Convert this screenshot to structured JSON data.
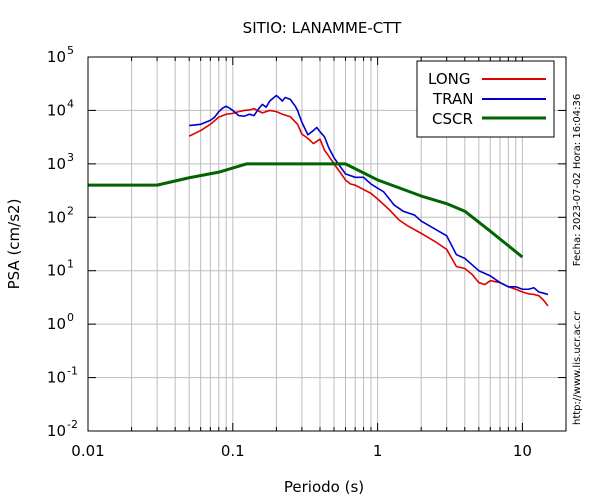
{
  "chart_data": {
    "type": "line",
    "title": "SITIO: LANAMME-CTT",
    "xlabel": "Periodo (s)",
    "ylabel": "PSA (cm/s2)",
    "x_scale": "log",
    "y_scale": "log",
    "xlim": [
      0.01,
      20
    ],
    "ylim": [
      0.01,
      100000
    ],
    "grid": true,
    "legend_position": "top-right",
    "x_ticks": [
      {
        "value": 0.01,
        "label": "0.01"
      },
      {
        "value": 0.1,
        "label": "0.1"
      },
      {
        "value": 1,
        "label": "1"
      },
      {
        "value": 10,
        "label": "10"
      }
    ],
    "y_ticks": [
      {
        "value": 0.01,
        "base": "10",
        "exp": "-2"
      },
      {
        "value": 0.1,
        "base": "10",
        "exp": "-1"
      },
      {
        "value": 1,
        "base": "10",
        "exp": "0"
      },
      {
        "value": 10,
        "base": "10",
        "exp": "1"
      },
      {
        "value": 100,
        "base": "10",
        "exp": "2"
      },
      {
        "value": 1000,
        "base": "10",
        "exp": "3"
      },
      {
        "value": 10000,
        "base": "10",
        "exp": "4"
      },
      {
        "value": 100000,
        "base": "10",
        "exp": "5"
      }
    ],
    "side_text": {
      "date": "Fecha: 2023-07-02  Hora: 16:04:36",
      "url": "http://www.lis.ucr.ac.cr"
    },
    "series": [
      {
        "name": "LONG",
        "color": "#e00000",
        "points": [
          [
            0.05,
            3300
          ],
          [
            0.06,
            4200
          ],
          [
            0.07,
            5500
          ],
          [
            0.08,
            7500
          ],
          [
            0.09,
            8500
          ],
          [
            0.1,
            8800
          ],
          [
            0.11,
            9500
          ],
          [
            0.12,
            10000
          ],
          [
            0.13,
            10200
          ],
          [
            0.14,
            10800
          ],
          [
            0.15,
            9800
          ],
          [
            0.16,
            9000
          ],
          [
            0.18,
            10000
          ],
          [
            0.2,
            9500
          ],
          [
            0.22,
            8500
          ],
          [
            0.25,
            7600
          ],
          [
            0.28,
            5500
          ],
          [
            0.3,
            3600
          ],
          [
            0.33,
            3000
          ],
          [
            0.36,
            2400
          ],
          [
            0.4,
            2900
          ],
          [
            0.43,
            1800
          ],
          [
            0.46,
            1400
          ],
          [
            0.5,
            1000
          ],
          [
            0.55,
            700
          ],
          [
            0.6,
            500
          ],
          [
            0.65,
            420
          ],
          [
            0.7,
            400
          ],
          [
            0.8,
            330
          ],
          [
            0.9,
            280
          ],
          [
            1.0,
            220
          ],
          [
            1.2,
            140
          ],
          [
            1.4,
            90
          ],
          [
            1.6,
            70
          ],
          [
            2.0,
            50
          ],
          [
            2.5,
            35
          ],
          [
            3.0,
            25
          ],
          [
            3.5,
            12
          ],
          [
            4.0,
            11
          ],
          [
            4.5,
            8.5
          ],
          [
            5.0,
            6
          ],
          [
            5.5,
            5.5
          ],
          [
            6.0,
            6.5
          ],
          [
            7.0,
            6
          ],
          [
            8.0,
            5
          ],
          [
            9.0,
            4.5
          ],
          [
            10.0,
            4
          ],
          [
            11.0,
            3.7
          ],
          [
            12.0,
            3.6
          ],
          [
            13.0,
            3.4
          ],
          [
            14.0,
            2.8
          ],
          [
            15.0,
            2.2
          ]
        ]
      },
      {
        "name": "TRAN",
        "color": "#0000cc",
        "points": [
          [
            0.05,
            5200
          ],
          [
            0.06,
            5500
          ],
          [
            0.07,
            6500
          ],
          [
            0.075,
            7500
          ],
          [
            0.08,
            9500
          ],
          [
            0.085,
            11000
          ],
          [
            0.09,
            12000
          ],
          [
            0.095,
            11000
          ],
          [
            0.1,
            10000
          ],
          [
            0.11,
            8000
          ],
          [
            0.12,
            7800
          ],
          [
            0.13,
            8500
          ],
          [
            0.14,
            8000
          ],
          [
            0.15,
            10500
          ],
          [
            0.16,
            13000
          ],
          [
            0.17,
            11500
          ],
          [
            0.18,
            15000
          ],
          [
            0.19,
            17000
          ],
          [
            0.2,
            19000
          ],
          [
            0.21,
            17000
          ],
          [
            0.22,
            15000
          ],
          [
            0.23,
            17500
          ],
          [
            0.25,
            16000
          ],
          [
            0.27,
            12000
          ],
          [
            0.28,
            10000
          ],
          [
            0.3,
            6000
          ],
          [
            0.33,
            3500
          ],
          [
            0.36,
            4200
          ],
          [
            0.38,
            4800
          ],
          [
            0.4,
            4000
          ],
          [
            0.43,
            3200
          ],
          [
            0.46,
            2000
          ],
          [
            0.5,
            1300
          ],
          [
            0.55,
            900
          ],
          [
            0.6,
            650
          ],
          [
            0.7,
            560
          ],
          [
            0.8,
            560
          ],
          [
            0.9,
            420
          ],
          [
            1.0,
            350
          ],
          [
            1.1,
            300
          ],
          [
            1.3,
            170
          ],
          [
            1.5,
            130
          ],
          [
            1.8,
            110
          ],
          [
            2.0,
            85
          ],
          [
            2.5,
            60
          ],
          [
            3.0,
            45
          ],
          [
            3.5,
            20
          ],
          [
            4.0,
            17
          ],
          [
            5.0,
            10
          ],
          [
            6.0,
            8
          ],
          [
            7.0,
            6
          ],
          [
            8.0,
            5
          ],
          [
            9.0,
            5
          ],
          [
            10.0,
            4.5
          ],
          [
            11.0,
            4.5
          ],
          [
            12.0,
            4.8
          ],
          [
            13.0,
            4.0
          ],
          [
            14.0,
            3.8
          ],
          [
            15.0,
            3.6
          ]
        ]
      },
      {
        "name": "CSCR",
        "color": "#006400",
        "points": [
          [
            0.01,
            400
          ],
          [
            0.03,
            400
          ],
          [
            0.05,
            550
          ],
          [
            0.08,
            700
          ],
          [
            0.125,
            1000
          ],
          [
            0.6,
            1000
          ],
          [
            1.0,
            500
          ],
          [
            2.0,
            250
          ],
          [
            3.0,
            180
          ],
          [
            4.0,
            130
          ],
          [
            6.0,
            55
          ],
          [
            10.0,
            18
          ]
        ]
      }
    ]
  }
}
